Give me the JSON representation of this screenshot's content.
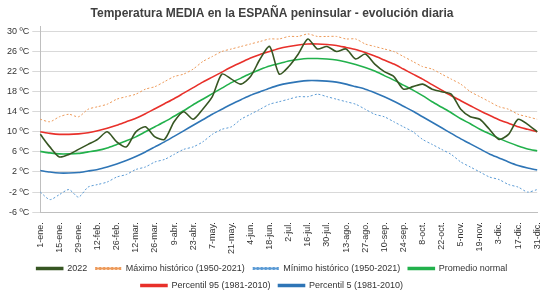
{
  "chart_data": {
    "type": "line",
    "title": "Temperatura MEDIA en la ESPAÑA peninsular - evolución diaria",
    "categories": [
      "1-ene.",
      null,
      "15-ene.",
      null,
      "29-ene.",
      null,
      "12-feb.",
      null,
      "26-feb.",
      null,
      "12-mar.",
      null,
      "26-mar.",
      null,
      "9-abr.",
      null,
      "23-abr.",
      null,
      "7-may.",
      null,
      "21-may.",
      null,
      "4-jun.",
      null,
      "18-jun.",
      null,
      "2-jul.",
      null,
      "16-jul.",
      null,
      "30-jul.",
      null,
      "13-ago.",
      null,
      "27-ago.",
      null,
      "10-sep.",
      null,
      "24-sep.",
      null,
      "8-oct.",
      null,
      "22-oct.",
      null,
      "5-nov.",
      null,
      "19-nov.",
      null,
      "3-dic.",
      null,
      "17-dic.",
      null,
      "31-dic."
    ],
    "series": [
      {
        "name": "Percentil 5 (1981-2010)",
        "color": "#2e75b6",
        "line_style": "solid",
        "values": [
          2.3,
          2.0,
          1.8,
          1.8,
          1.9,
          2.2,
          2.5,
          3.0,
          3.6,
          4.3,
          5.1,
          6.0,
          7.0,
          8.0,
          9.1,
          10.2,
          11.3,
          12.4,
          13.5,
          14.5,
          15.5,
          16.4,
          17.3,
          18.0,
          18.7,
          19.3,
          19.7,
          20.0,
          20.2,
          20.2,
          20.1,
          19.9,
          19.5,
          19.0,
          18.5,
          17.8,
          17.0,
          16.1,
          15.1,
          14.1,
          13.0,
          11.9,
          10.8,
          9.7,
          8.6,
          7.6,
          6.6,
          5.6,
          4.8,
          4.0,
          3.3,
          2.8,
          2.4
        ]
      },
      {
        "name": "Percentil 95 (1981-2010)",
        "color": "#e8302a",
        "line_style": "solid",
        "values": [
          10.0,
          9.7,
          9.5,
          9.5,
          9.6,
          9.8,
          10.2,
          10.7,
          11.3,
          12.0,
          12.7,
          13.6,
          14.6,
          15.6,
          16.6,
          17.7,
          18.8,
          19.9,
          20.9,
          21.9,
          22.9,
          23.8,
          24.7,
          25.4,
          26.0,
          26.6,
          27.0,
          27.3,
          27.5,
          27.5,
          27.4,
          27.2,
          26.8,
          26.4,
          25.8,
          25.1,
          24.3,
          23.5,
          22.5,
          21.5,
          20.5,
          19.4,
          18.3,
          17.2,
          16.2,
          15.2,
          14.2,
          13.3,
          12.4,
          11.7,
          11.0,
          10.5,
          10.0
        ]
      },
      {
        "name": "Promedio normal",
        "color": "#22b14c",
        "line_style": "solid",
        "values": [
          6.1,
          5.8,
          5.6,
          5.6,
          5.7,
          6.0,
          6.3,
          6.8,
          7.5,
          8.2,
          9.0,
          10.0,
          11.0,
          12.0,
          13.1,
          14.2,
          15.4,
          16.5,
          17.6,
          18.7,
          19.8,
          20.7,
          21.6,
          22.4,
          23.1,
          23.6,
          24.1,
          24.4,
          24.6,
          24.6,
          24.5,
          24.3,
          23.9,
          23.4,
          22.8,
          22.1,
          21.2,
          20.3,
          19.3,
          18.3,
          17.2,
          16.0,
          14.9,
          13.8,
          12.6,
          11.6,
          10.5,
          9.6,
          8.7,
          7.9,
          7.2,
          6.6,
          6.2
        ]
      },
      {
        "name": "Mínimo histórico (1950-2021)",
        "color": "#5b9bd5",
        "line_style": "dotted",
        "values": [
          -2.0,
          -3.5,
          -2.5,
          -1.5,
          -3.0,
          -1.0,
          -0.5,
          0.0,
          1.0,
          1.5,
          2.5,
          3.0,
          4.0,
          4.5,
          5.5,
          6.5,
          7.0,
          8.0,
          9.5,
          10.5,
          11.0,
          12.5,
          13.5,
          14.5,
          15.5,
          16.0,
          16.5,
          17.0,
          17.0,
          17.5,
          17.0,
          16.5,
          16.0,
          15.5,
          14.5,
          13.5,
          13.0,
          12.0,
          11.0,
          10.0,
          8.5,
          7.5,
          6.5,
          5.5,
          4.0,
          3.0,
          2.0,
          1.0,
          0.5,
          -0.5,
          -1.0,
          -2.0,
          -1.5
        ]
      },
      {
        "name": "Máximo histórico (1950-2021)",
        "color": "#ed9a5a",
        "line_style": "dotted",
        "values": [
          12.5,
          12.0,
          13.0,
          13.5,
          13.0,
          14.5,
          15.0,
          15.5,
          16.5,
          17.0,
          17.5,
          18.5,
          19.0,
          20.0,
          21.0,
          21.5,
          22.5,
          24.0,
          25.0,
          26.0,
          26.5,
          27.0,
          27.5,
          28.0,
          28.5,
          28.5,
          29.0,
          29.0,
          29.5,
          29.0,
          29.0,
          29.0,
          28.5,
          28.5,
          27.5,
          27.0,
          26.5,
          26.0,
          25.0,
          24.0,
          23.0,
          22.5,
          21.5,
          20.5,
          19.5,
          18.0,
          17.0,
          16.0,
          15.0,
          14.5,
          13.5,
          13.0,
          12.5
        ]
      },
      {
        "name": "2022",
        "color": "#375623",
        "line_style": "solid",
        "values": [
          9.5,
          7.0,
          5.0,
          5.5,
          6.5,
          7.5,
          8.5,
          10.0,
          8.0,
          7.0,
          10.0,
          11.0,
          9.0,
          8.5,
          12.0,
          14.0,
          12.5,
          14.5,
          17.0,
          21.5,
          20.5,
          19.5,
          21.0,
          24.5,
          27.0,
          21.5,
          23.0,
          25.5,
          28.5,
          26.5,
          27.0,
          26.0,
          26.5,
          24.5,
          25.5,
          23.5,
          22.0,
          21.0,
          18.5,
          19.0,
          19.5,
          18.5,
          18.0,
          17.5,
          14.5,
          13.0,
          12.5,
          10.5,
          8.5,
          9.5,
          12.5,
          11.5,
          10.0
        ]
      }
    ],
    "ylim": [
      -6,
      31
    ],
    "yticks": [
      {
        "value": -6,
        "label": "-6 ºC"
      },
      {
        "value": -2,
        "label": "-2 ºC"
      },
      {
        "value": 2,
        "label": "2 ºC"
      },
      {
        "value": 6,
        "label": "6 ºC"
      },
      {
        "value": 10,
        "label": "10 ºC"
      },
      {
        "value": 14,
        "label": "14 ºC"
      },
      {
        "value": 18,
        "label": "18 ºC"
      },
      {
        "value": 22,
        "label": "22 ºC"
      },
      {
        "value": 26,
        "label": "26 ºC"
      },
      {
        "value": 30,
        "label": "30 ºC"
      }
    ],
    "grid": true,
    "legend": "bottom"
  }
}
